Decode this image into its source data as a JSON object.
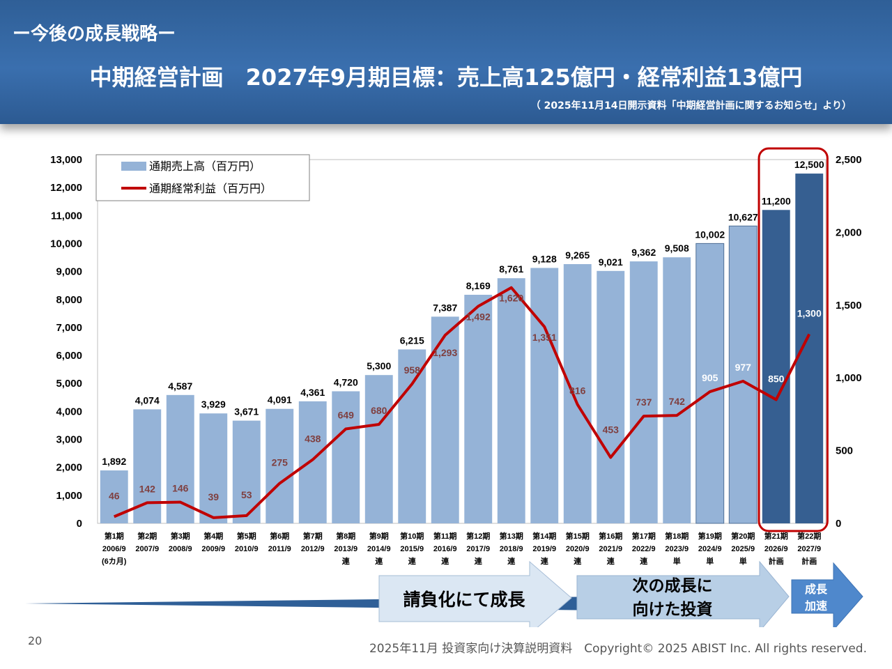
{
  "header": {
    "section_title": "ー今後の成長戦略ー",
    "headline": "中期経営計画　2027年9月期目標：売上高125億円・経常利益13億円",
    "source_note": "（ 2025年11月14日開示資料「中期経営計画に関するお知らせ」より）"
  },
  "chart_data": {
    "type": "bar",
    "title": "中期経営計画　2027年9月期目標：売上高125億円・経常利益13億円",
    "categories": [
      {
        "period": "第1期",
        "year": "2006/9",
        "note": "(6カ月)"
      },
      {
        "period": "第2期",
        "year": "2007/9",
        "note": ""
      },
      {
        "period": "第3期",
        "year": "2008/9",
        "note": ""
      },
      {
        "period": "第4期",
        "year": "2009/9",
        "note": ""
      },
      {
        "period": "第5期",
        "year": "2010/9",
        "note": ""
      },
      {
        "period": "第6期",
        "year": "2011/9",
        "note": ""
      },
      {
        "period": "第7期",
        "year": "2012/9",
        "note": ""
      },
      {
        "period": "第8期",
        "year": "2013/9",
        "note": "連"
      },
      {
        "period": "第9期",
        "year": "2014/9",
        "note": "連"
      },
      {
        "period": "第10期",
        "year": "2015/9",
        "note": "連"
      },
      {
        "period": "第11期",
        "year": "2016/9",
        "note": "連"
      },
      {
        "period": "第12期",
        "year": "2017/9",
        "note": "連"
      },
      {
        "period": "第13期",
        "year": "2018/9",
        "note": "連"
      },
      {
        "period": "第14期",
        "year": "2019/9",
        "note": "連"
      },
      {
        "period": "第15期",
        "year": "2020/9",
        "note": "連"
      },
      {
        "period": "第16期",
        "year": "2021/9",
        "note": "連"
      },
      {
        "period": "第17期",
        "year": "2022/9",
        "note": "連"
      },
      {
        "period": "第18期",
        "year": "2023/9",
        "note": "単"
      },
      {
        "period": "第19期",
        "year": "2024/9",
        "note": "単"
      },
      {
        "period": "第20期",
        "year": "2025/9",
        "note": "単"
      },
      {
        "period": "第21期",
        "year": "2026/9",
        "note": "計画"
      },
      {
        "period": "第22期",
        "year": "2027/9",
        "note": "計画"
      }
    ],
    "series": [
      {
        "name": "通期売上高（百万円）",
        "type": "bar",
        "axis": "left",
        "values": [
          1892,
          4074,
          4587,
          3929,
          3671,
          4091,
          4361,
          4720,
          5300,
          6215,
          7387,
          8169,
          8761,
          9128,
          9265,
          9021,
          9362,
          9508,
          10002,
          10627,
          11200,
          12500
        ],
        "labels": [
          "1,892",
          "4,074",
          "4,587",
          "3,929",
          "3,671",
          "4,091",
          "4,361",
          "4,720",
          "5,300",
          "6,215",
          "7,387",
          "8,169",
          "8,761",
          "9,128",
          "9,265",
          "9,021",
          "9,362",
          "9,508",
          "10,002",
          "10,627",
          "11,200",
          "12,500"
        ]
      },
      {
        "name": "通期経常利益（百万円）",
        "type": "line",
        "axis": "right",
        "values": [
          46,
          142,
          146,
          39,
          53,
          275,
          438,
          649,
          680,
          958,
          1293,
          1492,
          1620,
          1351,
          816,
          453,
          737,
          742,
          905,
          977,
          850,
          1300
        ],
        "labels": [
          "46",
          "142",
          "146",
          "39",
          "53",
          "275",
          "438",
          "649",
          "680",
          "958",
          "1,293",
          "1,492",
          "1,620",
          "1,351",
          "816",
          "453",
          "737",
          "742",
          "905",
          "977",
          "850",
          "1,300"
        ]
      }
    ],
    "left_axis": {
      "min": 0,
      "max": 13000,
      "ticks": [
        "0",
        "1,000",
        "2,000",
        "3,000",
        "4,000",
        "5,000",
        "6,000",
        "7,000",
        "8,000",
        "9,000",
        "10,000",
        "11,000",
        "12,000",
        "13,000"
      ]
    },
    "right_axis": {
      "min": 0,
      "max": 2500,
      "ticks": [
        "0",
        "500",
        "1,000",
        "1,500",
        "2,000",
        "2,500"
      ]
    },
    "legend": {
      "position": "top-left"
    },
    "plan_highlight": "第21期〜第22期"
  },
  "phases": [
    {
      "label": "請負化にて成長"
    },
    {
      "label": "次の成長に\n向けた投資"
    },
    {
      "label": "成長\n加速"
    }
  ],
  "colors": {
    "bar_actual": "#95b3d7",
    "bar_plan": "#365f91",
    "line": "#c00000",
    "line_label": "#7f3f3f",
    "highlight_box": "#c00000",
    "arrow_light": "#dbe7f3",
    "arrow_mid": "#b8cfe6",
    "arrow_dark": "#4f88cc"
  },
  "footer": {
    "page_number": "20",
    "copyright": "2025年11月 投資家向け決算説明資料　Copyright© 2025 ABIST Inc. All rights reserved."
  }
}
